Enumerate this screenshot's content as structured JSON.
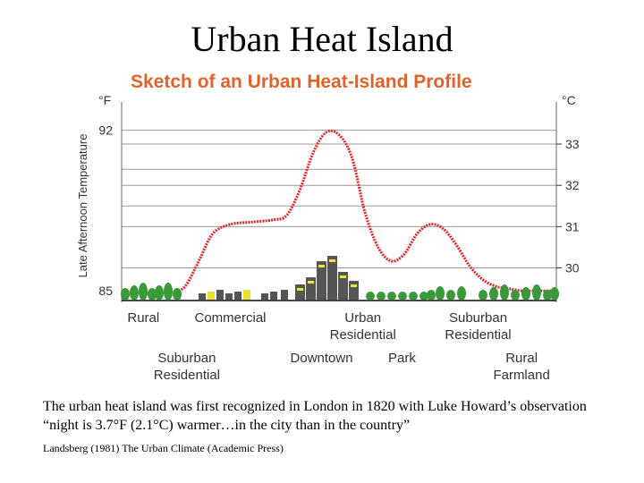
{
  "slide": {
    "title": "Urban Heat Island",
    "caption": "The urban heat island was first recognized in London in 1820 with Luke Howard’s observation “night is 3.7°F (2.1°C) warmer…in the city than in the country”",
    "source": "Landsberg (1981) The Urban Climate (Academic Press)"
  },
  "colors": {
    "title": "#e2632a",
    "curve": "#e8262a",
    "grid": "#999999",
    "text": "#333333",
    "tree": "#3a9a3a",
    "building": "#555555"
  },
  "chart_data": {
    "type": "line",
    "title": "Sketch of an Urban Heat-Island Profile",
    "ylabel": "Late Afternoon Temperature",
    "y_unit_left": "°F",
    "y_unit_right": "°C",
    "ylim": [
      84.5,
      93.0
    ],
    "left_ticks": [
      {
        "value": 92,
        "label": "92"
      },
      {
        "value": 85,
        "label": "85"
      }
    ],
    "right_ticks": [
      {
        "value": 91.4,
        "label": "33"
      },
      {
        "value": 89.6,
        "label": "32"
      },
      {
        "value": 87.8,
        "label": "31"
      },
      {
        "value": 86.0,
        "label": "30"
      }
    ],
    "gridlines": [
      92.0,
      91.4,
      90.3,
      89.6,
      88.7,
      87.8,
      86.0
    ],
    "x_range": [
      0,
      100
    ],
    "series": [
      {
        "name": "Temperature profile",
        "x": [
          0,
          5,
          10,
          13,
          15,
          18,
          21,
          25,
          30,
          35,
          38,
          41,
          44,
          47,
          50,
          53,
          56,
          59,
          62,
          65,
          68,
          71,
          74,
          77,
          80,
          83,
          86,
          89,
          92,
          95,
          100
        ],
        "y": [
          85.0,
          84.9,
          84.9,
          85.0,
          85.3,
          86.4,
          87.5,
          87.9,
          88.0,
          88.1,
          88.3,
          89.4,
          91.0,
          91.9,
          91.8,
          90.8,
          88.4,
          86.9,
          86.3,
          86.6,
          87.5,
          87.9,
          87.7,
          87.0,
          86.1,
          85.5,
          85.2,
          85.1,
          85.0,
          85.0,
          85.0
        ]
      }
    ],
    "regions": [
      {
        "label": "Rural",
        "x": 5,
        "row": 1
      },
      {
        "label": "Commercial",
        "x": 25,
        "row": 1
      },
      {
        "label": "Urban\nResidential",
        "x": 55.5,
        "row": 1
      },
      {
        "label": "Suburban\nResidential",
        "x": 82,
        "row": 1
      },
      {
        "label": "Suburban\nResidential",
        "x": 15,
        "row": 2
      },
      {
        "label": "Downtown",
        "x": 46,
        "row": 2
      },
      {
        "label": "Park",
        "x": 64.5,
        "row": 2
      },
      {
        "label": "Rural\nFarmland",
        "x": 92,
        "row": 2
      }
    ]
  }
}
